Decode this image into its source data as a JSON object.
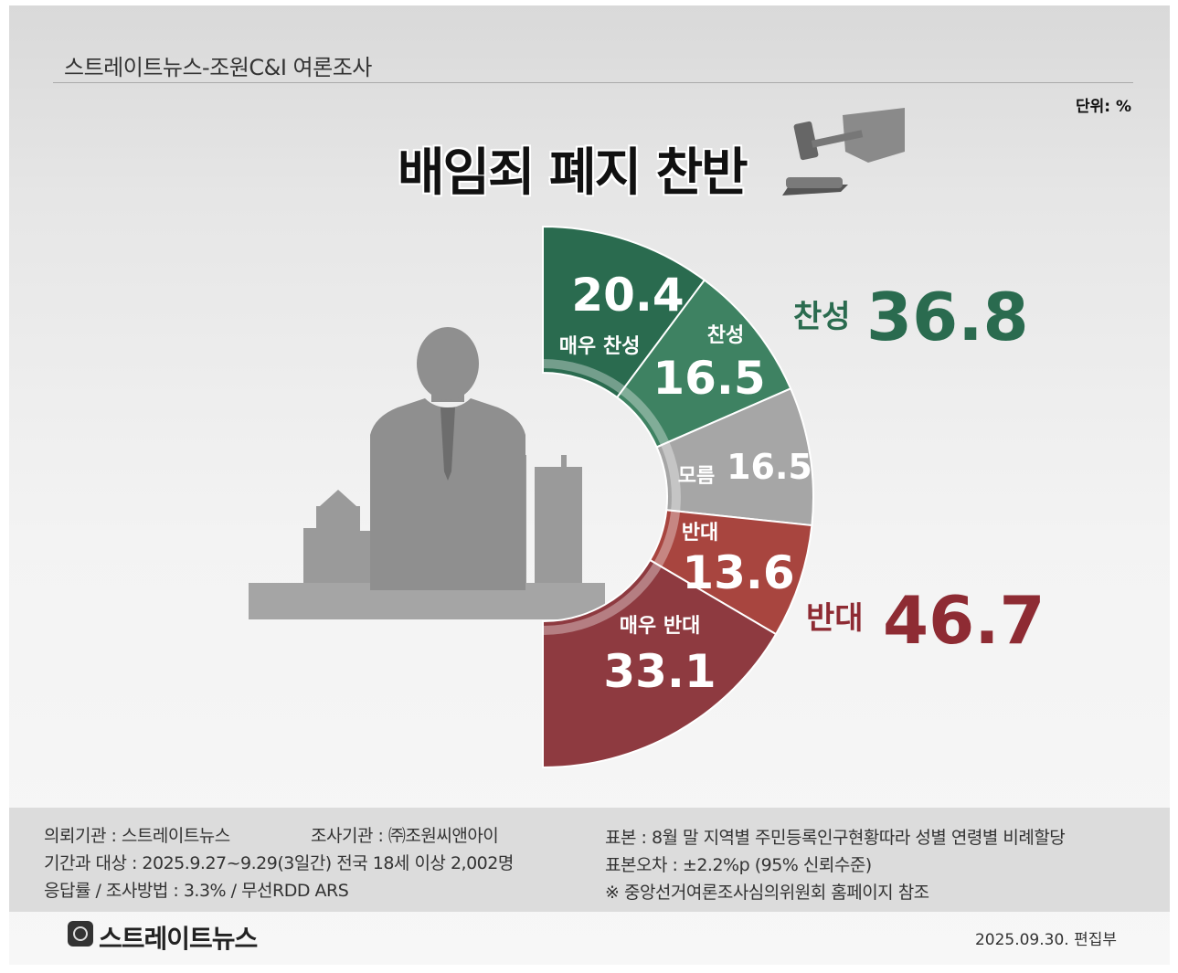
{
  "header": {
    "source": "스트레이트뉴스-조원C&I 여론조사",
    "unit": "단위: %",
    "title": "배임죄 폐지 찬반"
  },
  "chart_data": {
    "type": "pie",
    "title": "배임죄 폐지 찬반",
    "unit": "%",
    "segments": [
      {
        "label": "매우 찬성",
        "value": 20.4,
        "color": "#2a6b4f"
      },
      {
        "label": "찬성",
        "value": 16.5,
        "color": "#3e8262"
      },
      {
        "label": "모름",
        "value": 16.5,
        "color": "#a6a6a6"
      },
      {
        "label": "반대",
        "value": 13.6,
        "color": "#a8453f"
      },
      {
        "label": "매우 반대",
        "value": 33.1,
        "color": "#8e3a40"
      }
    ],
    "totals": [
      {
        "label": "찬성",
        "value": "36.8",
        "color": "#2a6b4f"
      },
      {
        "label": "반대",
        "value": "46.7",
        "color": "#8e2b33"
      }
    ]
  },
  "footer": {
    "client": "의뢰기관 : 스트레이트뉴스",
    "agency": "조사기관 : ㈜조원씨앤아이",
    "period": "기간과 대상 : 2025.9.27~9.29(3일간)   전국 18세 이상  2,002명",
    "method": "응답률 / 조사방법 : 3.3% / 무선RDD ARS",
    "sample": "표본 : 8월 말 지역별 주민등록인구현황따라 성별 연령별 비례할당",
    "error": "표본오차 : ±2.2%p (95% 신뢰수준)",
    "note": "※ 중앙선거여론조사심의위원회 홈페이지 참조",
    "brand": "스트레이트뉴스",
    "date": "2025.09.30. 편집부"
  }
}
